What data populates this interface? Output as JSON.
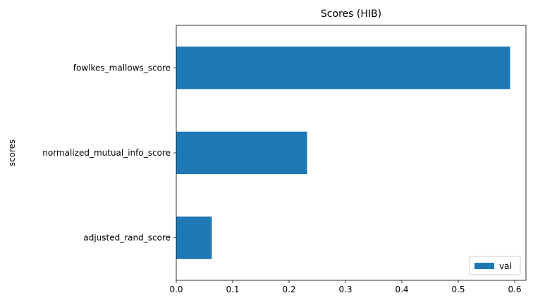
{
  "chart_data": {
    "type": "bar",
    "orientation": "horizontal",
    "title": "Scores (HIB)",
    "xlabel": "",
    "ylabel": "scores",
    "categories": [
      "adjusted_rand_score",
      "normalized_mutual_info_score",
      "fowlkes_mallows_score"
    ],
    "series": [
      {
        "name": "val",
        "values": [
          0.063,
          0.232,
          0.592
        ],
        "color": "#1f77b4"
      }
    ],
    "xlim": [
      0,
      0.62
    ],
    "xticks": [
      "0.0",
      "0.1",
      "0.2",
      "0.3",
      "0.4",
      "0.5",
      "0.6"
    ],
    "grid": false,
    "legend_position": "lower-right"
  }
}
